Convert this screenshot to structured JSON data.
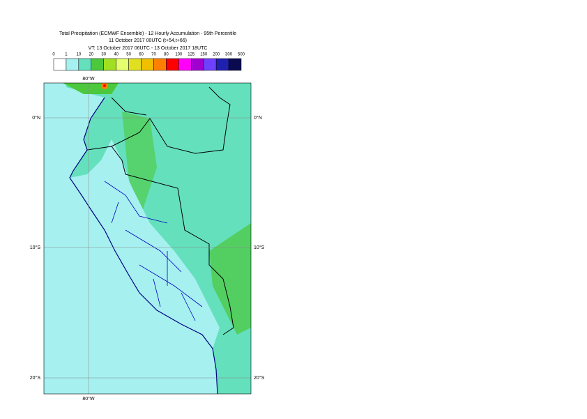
{
  "header": {
    "title": "Total Precipitation (ECMWF Ensemble) - 12 Hourly Accumulation - 95th Percentile",
    "run": "11 October 2017 00UTC (t+54,t+66)",
    "valid": "VT: 13 October 2017 06UTC - 13 October 2017 18UTC"
  },
  "legend": {
    "levels": [
      0,
      1,
      10,
      20,
      30,
      40,
      50,
      60,
      70,
      80,
      100,
      125,
      150,
      200,
      300,
      500
    ],
    "colors": [
      "#ffffff",
      "#a6f0f0",
      "#64e0bc",
      "#4cc83c",
      "#a0e020",
      "#e6ff70",
      "#e0e020",
      "#f0c000",
      "#ff8000",
      "#ff0000",
      "#ff00ff",
      "#a000d0",
      "#7040ff",
      "#2020b0",
      "#0a0a50"
    ]
  },
  "map": {
    "lon_labels": [
      "80°W",
      "80°W"
    ],
    "lat_labels": [
      "0°N",
      "0°N",
      "10°S",
      "10°S",
      "20°S",
      "20°S"
    ]
  }
}
